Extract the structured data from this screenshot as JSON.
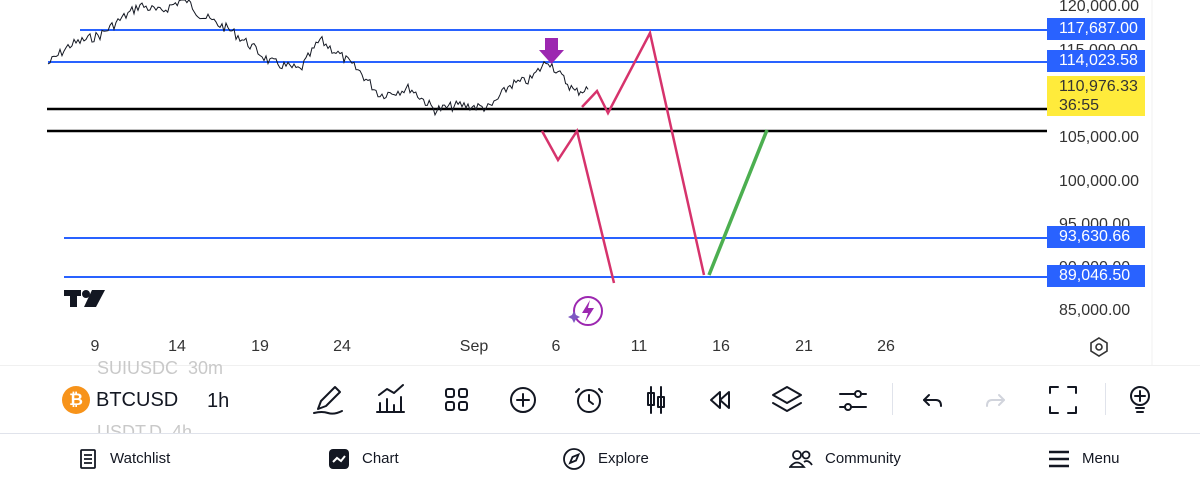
{
  "chart": {
    "symbol": "BTCUSD",
    "interval": "1h",
    "ghost_symbols": [
      {
        "symbol": "SUIUSDC",
        "interval": "30m"
      },
      {
        "symbol": "USDT.D",
        "interval": "4h"
      }
    ],
    "price_axis_labels": [
      "120,000.00",
      "115,000.00",
      "105,000.00",
      "100,000.00",
      "95,000.00",
      "90,000.00",
      "85,000.00"
    ],
    "price_tags": [
      {
        "label": "117,687.00",
        "color": "#2962ff"
      },
      {
        "label": "114,023.58",
        "color": "#2962ff"
      },
      {
        "label": "93,630.66",
        "color": "#2962ff"
      },
      {
        "label": "89,046.50",
        "color": "#2962ff"
      }
    ],
    "current_price": {
      "price": "110,976.33",
      "countdown": "36:55",
      "color": "#ffeb3b"
    },
    "time_axis_labels": [
      "9",
      "14",
      "19",
      "24",
      "Sep",
      "6",
      "11",
      "16",
      "21",
      "26"
    ],
    "colors": {
      "horizontal_lines": "#2962ff",
      "support_lines": "#000000",
      "projection": "#d6336c",
      "recovery": "#4caf50",
      "arrow": "#9c27b0"
    }
  },
  "toolbar": {
    "icons": [
      "pencil-icon",
      "indicators-icon",
      "layout-grid-icon",
      "add-icon",
      "alarm-icon",
      "candles-icon",
      "replay-icon",
      "layers-icon",
      "settings-sliders-icon",
      "undo-icon",
      "redo-icon",
      "fullscreen-icon",
      "ideas-icon"
    ]
  },
  "nav": {
    "watchlist": "Watchlist",
    "chart": "Chart",
    "explore": "Explore",
    "community": "Community",
    "menu": "Menu"
  }
}
